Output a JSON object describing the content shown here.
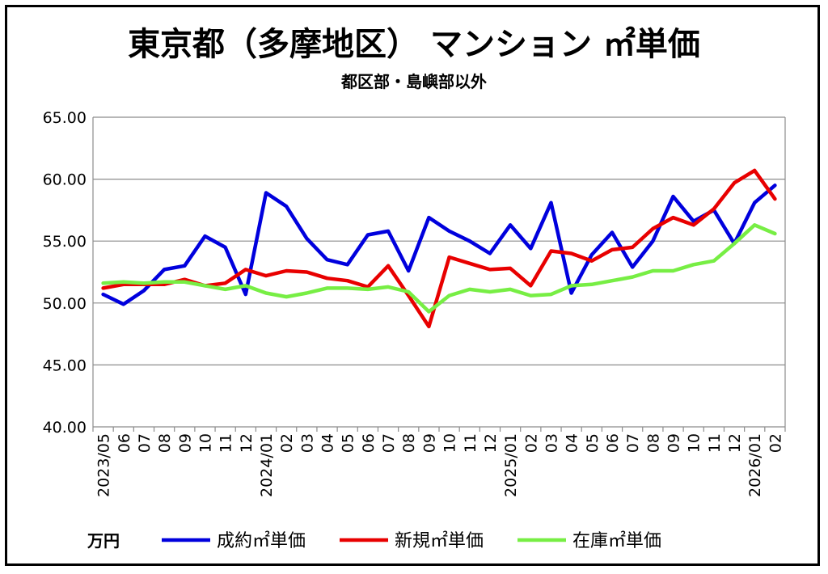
{
  "chart_data": {
    "type": "line",
    "title": "東京都（多摩地区） マンション ㎡単価",
    "subtitle": "都区部・島嶼部以外",
    "unit_label": "万円",
    "ylim": [
      40,
      65
    ],
    "yticks": [
      "40.00",
      "45.00",
      "50.00",
      "55.00",
      "60.00",
      "65.00"
    ],
    "grid": true,
    "legend_position": "bottom",
    "x": [
      "2023/05",
      "06",
      "07",
      "08",
      "09",
      "10",
      "11",
      "12",
      "2024/01",
      "02",
      "03",
      "04",
      "05",
      "06",
      "07",
      "08",
      "09",
      "10",
      "11",
      "12",
      "2025/01",
      "02",
      "03",
      "04",
      "05",
      "06",
      "07",
      "08",
      "09",
      "10",
      "11",
      "12",
      "2026/01",
      "02"
    ],
    "series": [
      {
        "name": "成約㎡単価",
        "color": "#0000dd",
        "values": [
          50.7,
          49.9,
          51.0,
          52.7,
          53.0,
          55.4,
          54.5,
          50.7,
          58.9,
          57.8,
          55.2,
          53.5,
          53.1,
          55.5,
          55.8,
          52.6,
          56.9,
          55.8,
          55.0,
          54.0,
          56.3,
          54.4,
          58.1,
          50.8,
          53.9,
          55.7,
          52.9,
          55.0,
          58.6,
          56.6,
          57.5,
          54.8,
          58.1,
          59.5
        ]
      },
      {
        "name": "新規㎡単価",
        "color": "#e80000",
        "values": [
          51.2,
          51.5,
          51.5,
          51.5,
          51.9,
          51.4,
          51.6,
          52.7,
          52.2,
          52.6,
          52.5,
          52.0,
          51.8,
          51.3,
          53.0,
          50.6,
          48.1,
          53.7,
          53.2,
          52.7,
          52.8,
          51.4,
          54.2,
          54.0,
          53.4,
          54.3,
          54.5,
          56.0,
          56.9,
          56.3,
          57.6,
          59.7,
          60.7,
          58.4
        ]
      },
      {
        "name": "在庫㎡単価",
        "color": "#77ee44",
        "values": [
          51.6,
          51.7,
          51.6,
          51.7,
          51.7,
          51.4,
          51.1,
          51.4,
          50.8,
          50.5,
          50.8,
          51.2,
          51.2,
          51.1,
          51.3,
          50.9,
          49.3,
          50.6,
          51.1,
          50.9,
          51.1,
          50.6,
          50.7,
          51.4,
          51.5,
          51.8,
          52.1,
          52.6,
          52.6,
          53.1,
          53.4,
          54.8,
          56.3,
          55.6
        ]
      }
    ]
  }
}
